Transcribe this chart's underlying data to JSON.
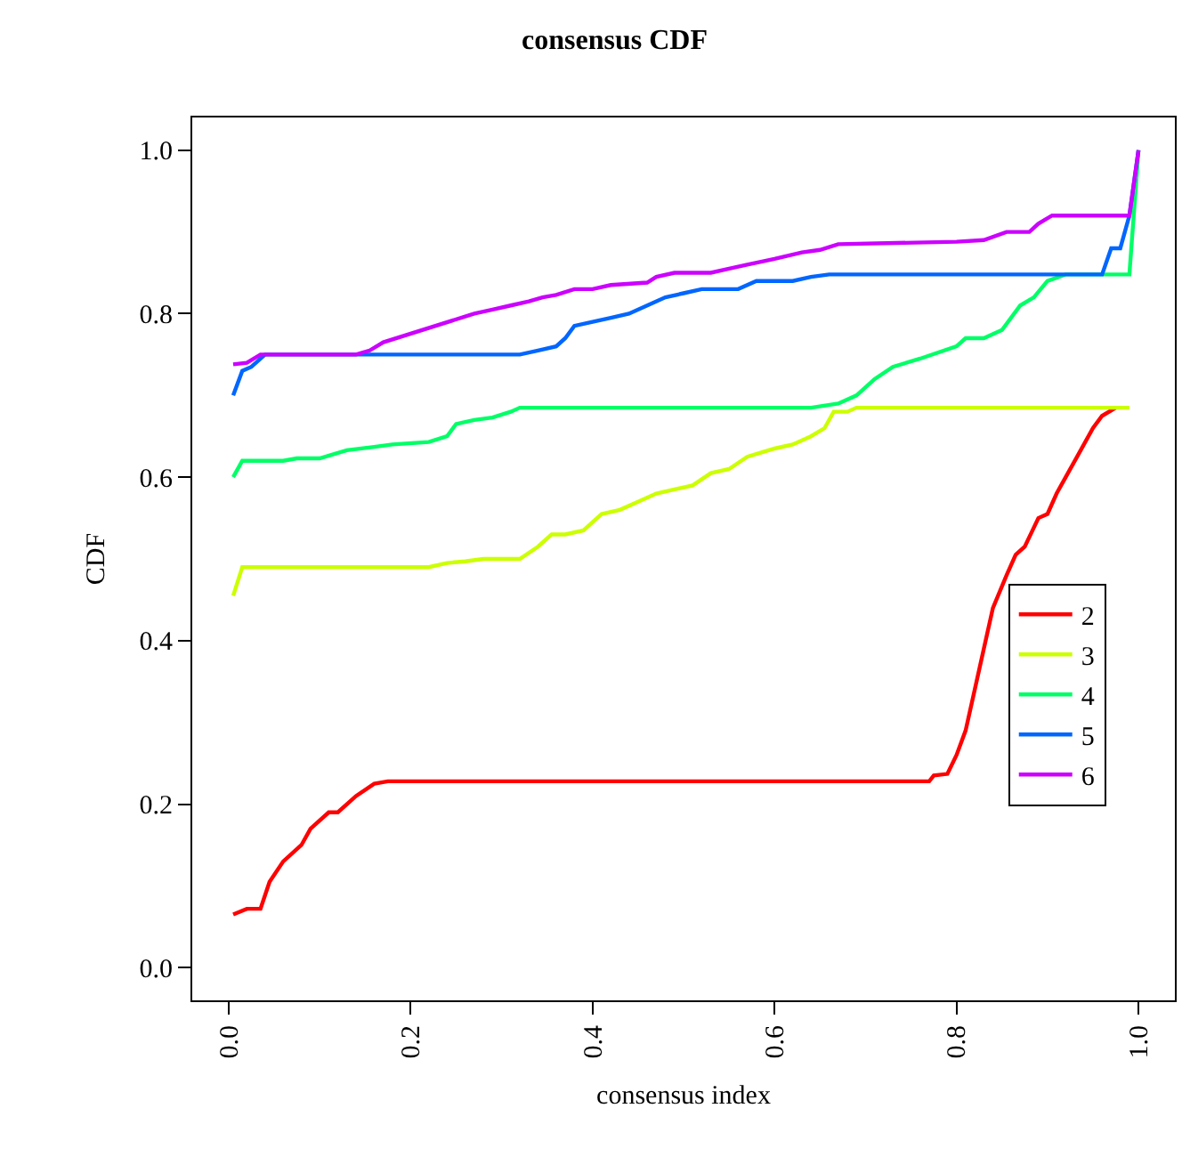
{
  "chart_data": {
    "type": "line",
    "title": "consensus CDF",
    "xlabel": "consensus index",
    "ylabel": "CDF",
    "xlim": [
      -0.04,
      1.04
    ],
    "ylim": [
      -0.04,
      1.04
    ],
    "xticks": [
      {
        "value": 0,
        "label": "0.0"
      },
      0.2,
      0.4,
      0.6,
      0.8,
      {
        "value": 1,
        "label": "1.0"
      }
    ],
    "yticks": [
      {
        "value": 0,
        "label": "0.0"
      },
      0.2,
      0.4,
      0.6,
      0.8,
      {
        "value": 1,
        "label": "1.0"
      }
    ],
    "legend": "right",
    "marker": "none",
    "line_style": "solid",
    "series": [
      {
        "name": "2",
        "color": "#ff0000",
        "x": [
          0.005,
          0.02,
          0.035,
          0.045,
          0.06,
          0.08,
          0.09,
          0.11,
          0.12,
          0.14,
          0.16,
          0.175,
          0.77,
          0.775,
          0.79,
          0.8,
          0.81,
          0.82,
          0.83,
          0.84,
          0.855,
          0.865,
          0.875,
          0.89,
          0.9,
          0.91,
          0.92,
          0.935,
          0.95,
          0.96,
          0.975
        ],
        "values": [
          0.065,
          0.072,
          0.072,
          0.105,
          0.13,
          0.15,
          0.17,
          0.19,
          0.19,
          0.21,
          0.225,
          0.228,
          0.228,
          0.235,
          0.237,
          0.26,
          0.29,
          0.34,
          0.39,
          0.44,
          0.48,
          0.505,
          0.515,
          0.55,
          0.555,
          0.58,
          0.6,
          0.63,
          0.66,
          0.675,
          0.685
        ]
      },
      {
        "name": "3",
        "color": "#ccff00",
        "x": [
          0.005,
          0.015,
          0.22,
          0.24,
          0.26,
          0.28,
          0.32,
          0.34,
          0.355,
          0.37,
          0.39,
          0.41,
          0.43,
          0.45,
          0.47,
          0.49,
          0.51,
          0.53,
          0.55,
          0.57,
          0.6,
          0.62,
          0.64,
          0.655,
          0.665,
          0.68,
          0.69,
          0.99
        ],
        "values": [
          0.455,
          0.49,
          0.49,
          0.495,
          0.497,
          0.5,
          0.5,
          0.515,
          0.53,
          0.53,
          0.535,
          0.555,
          0.56,
          0.57,
          0.58,
          0.585,
          0.59,
          0.605,
          0.61,
          0.625,
          0.635,
          0.64,
          0.65,
          0.66,
          0.68,
          0.68,
          0.685,
          0.685
        ]
      },
      {
        "name": "4",
        "color": "#00ff66",
        "x": [
          0.005,
          0.015,
          0.06,
          0.075,
          0.1,
          0.13,
          0.16,
          0.18,
          0.22,
          0.24,
          0.25,
          0.27,
          0.29,
          0.31,
          0.32,
          0.64,
          0.67,
          0.69,
          0.71,
          0.73,
          0.76,
          0.8,
          0.81,
          0.83,
          0.85,
          0.87,
          0.885,
          0.9,
          0.92,
          0.99,
          1.0
        ],
        "values": [
          0.6,
          0.62,
          0.62,
          0.623,
          0.623,
          0.633,
          0.637,
          0.64,
          0.643,
          0.65,
          0.665,
          0.67,
          0.673,
          0.68,
          0.685,
          0.685,
          0.69,
          0.7,
          0.72,
          0.735,
          0.745,
          0.76,
          0.77,
          0.77,
          0.78,
          0.81,
          0.82,
          0.84,
          0.848,
          0.848,
          1.0
        ]
      },
      {
        "name": "5",
        "color": "#0066ff",
        "x": [
          0.005,
          0.015,
          0.025,
          0.04,
          0.32,
          0.34,
          0.36,
          0.37,
          0.38,
          0.4,
          0.42,
          0.44,
          0.46,
          0.48,
          0.5,
          0.52,
          0.56,
          0.58,
          0.62,
          0.64,
          0.66,
          0.96,
          0.97,
          0.98,
          0.99,
          1.0
        ],
        "values": [
          0.7,
          0.73,
          0.735,
          0.75,
          0.75,
          0.755,
          0.76,
          0.77,
          0.785,
          0.79,
          0.795,
          0.8,
          0.81,
          0.82,
          0.825,
          0.83,
          0.83,
          0.84,
          0.84,
          0.845,
          0.848,
          0.848,
          0.88,
          0.88,
          0.92,
          1.0
        ]
      },
      {
        "name": "6",
        "color": "#cc00ff",
        "x": [
          0.005,
          0.02,
          0.035,
          0.14,
          0.155,
          0.17,
          0.27,
          0.29,
          0.31,
          0.33,
          0.345,
          0.36,
          0.38,
          0.4,
          0.42,
          0.46,
          0.47,
          0.49,
          0.53,
          0.55,
          0.57,
          0.6,
          0.63,
          0.65,
          0.67,
          0.8,
          0.83,
          0.855,
          0.88,
          0.89,
          0.905,
          0.99,
          1.0
        ],
        "values": [
          0.738,
          0.74,
          0.75,
          0.75,
          0.755,
          0.765,
          0.8,
          0.805,
          0.81,
          0.815,
          0.82,
          0.823,
          0.83,
          0.83,
          0.835,
          0.838,
          0.845,
          0.85,
          0.85,
          0.855,
          0.86,
          0.867,
          0.875,
          0.878,
          0.885,
          0.888,
          0.89,
          0.9,
          0.9,
          0.91,
          0.92,
          0.92,
          1.0
        ]
      }
    ]
  }
}
